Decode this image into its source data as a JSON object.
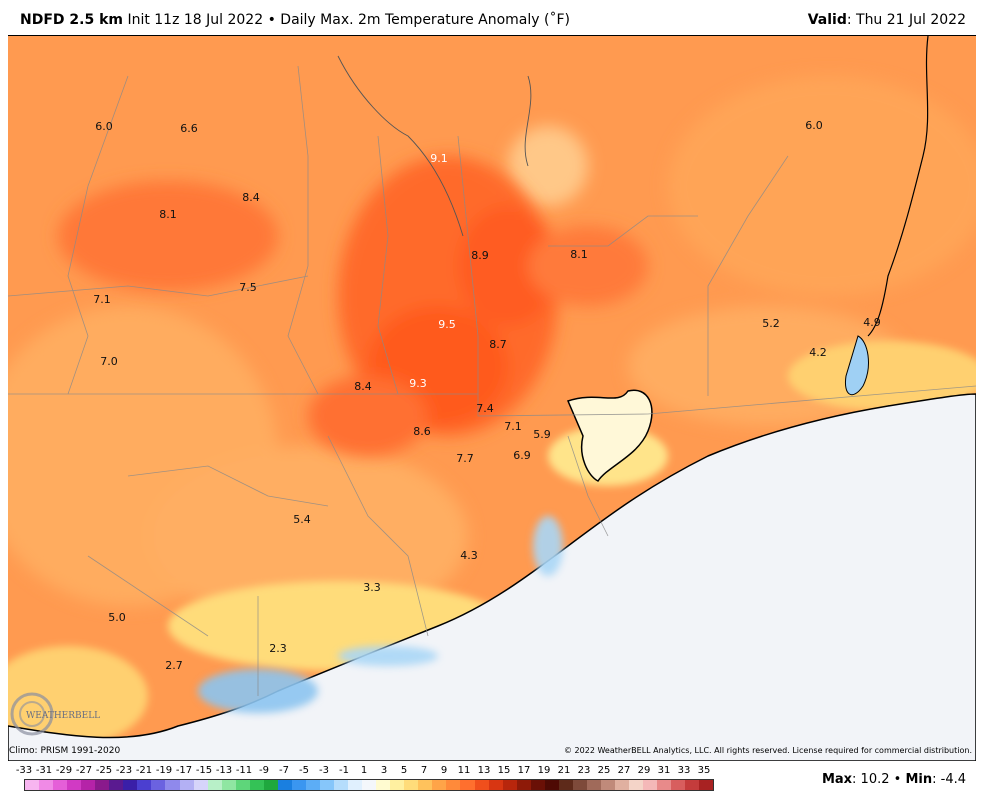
{
  "header": {
    "model": "NDFD 2.5 km",
    "init": "Init 11z 18 Jul 2022",
    "bullet": "•",
    "product": "Daily Max. 2m Temperature Anomaly (˚F)",
    "valid_label": "Valid",
    "valid_value": ": Thu 21 Jul 2022"
  },
  "map_labels": [
    {
      "value": "6.0",
      "white": false
    },
    {
      "value": "6.6",
      "white": false
    },
    {
      "value": "9.1",
      "white": true
    },
    {
      "value": "6.0",
      "white": false
    },
    {
      "value": "8.4",
      "white": false
    },
    {
      "value": "8.1",
      "white": false
    },
    {
      "value": "8.9",
      "white": false
    },
    {
      "value": "8.1",
      "white": false
    },
    {
      "value": "7.1",
      "white": false
    },
    {
      "value": "7.5",
      "white": false
    },
    {
      "value": "9.5",
      "white": true
    },
    {
      "value": "5.2",
      "white": false
    },
    {
      "value": "4.9",
      "white": false
    },
    {
      "value": "8.7",
      "white": false
    },
    {
      "value": "4.2",
      "white": false
    },
    {
      "value": "7.0",
      "white": false
    },
    {
      "value": "8.4",
      "white": false
    },
    {
      "value": "9.3",
      "white": true
    },
    {
      "value": "7.4",
      "white": false
    },
    {
      "value": "7.1",
      "white": false
    },
    {
      "value": "5.9",
      "white": false
    },
    {
      "value": "8.6",
      "white": false
    },
    {
      "value": "7.7",
      "white": false
    },
    {
      "value": "6.9",
      "white": false
    },
    {
      "value": "5.4",
      "white": false
    },
    {
      "value": "4.3",
      "white": false
    },
    {
      "value": "3.3",
      "white": false
    },
    {
      "value": "5.0",
      "white": false
    },
    {
      "value": "2.3",
      "white": false
    },
    {
      "value": "2.7",
      "white": false
    }
  ],
  "footer": {
    "climo": "Climo: PRISM 1991-2020",
    "copyright": "© 2022 WeatherBELL Analytics, LLC. All rights reserved. License required for commercial distribution.",
    "max_label": "Max",
    "max_value": ": 10.2",
    "sep": " • ",
    "min_label": "Min",
    "min_value": ": -4.4",
    "logo_text": "WEATHERBELL"
  },
  "legend": {
    "ticks": [
      "-33",
      "-31",
      "-29",
      "-27",
      "-25",
      "-23",
      "-21",
      "-19",
      "-17",
      "-15",
      "-13",
      "-11",
      "-9",
      "-7",
      "-5",
      "-3",
      "-1",
      "1",
      "3",
      "5",
      "7",
      "9",
      "11",
      "13",
      "15",
      "17",
      "19",
      "21",
      "23",
      "25",
      "27",
      "29",
      "31",
      "33",
      "35"
    ],
    "colors": [
      "#f7b5f0",
      "#f08ae6",
      "#e55fd8",
      "#d13ac4",
      "#b523a8",
      "#8a1a8c",
      "#5a1a90",
      "#3a1fa8",
      "#4b3fd0",
      "#6b62e0",
      "#8f89ec",
      "#b3b0f4",
      "#d6d4fa",
      "#b8f0c8",
      "#8fe6a2",
      "#5ed67a",
      "#34c256",
      "#1fa83e",
      "#1a7fe0",
      "#3a96f0",
      "#5cadf6",
      "#86c6fa",
      "#b5ddfc",
      "#e0f0fe",
      "#f4f7fb",
      "#fffbd0",
      "#fff0a0",
      "#ffdc7a",
      "#ffc25c",
      "#ffa448",
      "#ff8a3a",
      "#ff6f2e",
      "#f04f1c",
      "#d83612",
      "#b8260c",
      "#8e1a08",
      "#6a1006",
      "#4e0a04",
      "#5e2a1a",
      "#7e4a3a",
      "#a06a5a",
      "#c08a7a",
      "#e0b0a0",
      "#f4d4c8",
      "#f4b8b8",
      "#e88a8a",
      "#d85e5e",
      "#c43c3c",
      "#a82222"
    ]
  }
}
